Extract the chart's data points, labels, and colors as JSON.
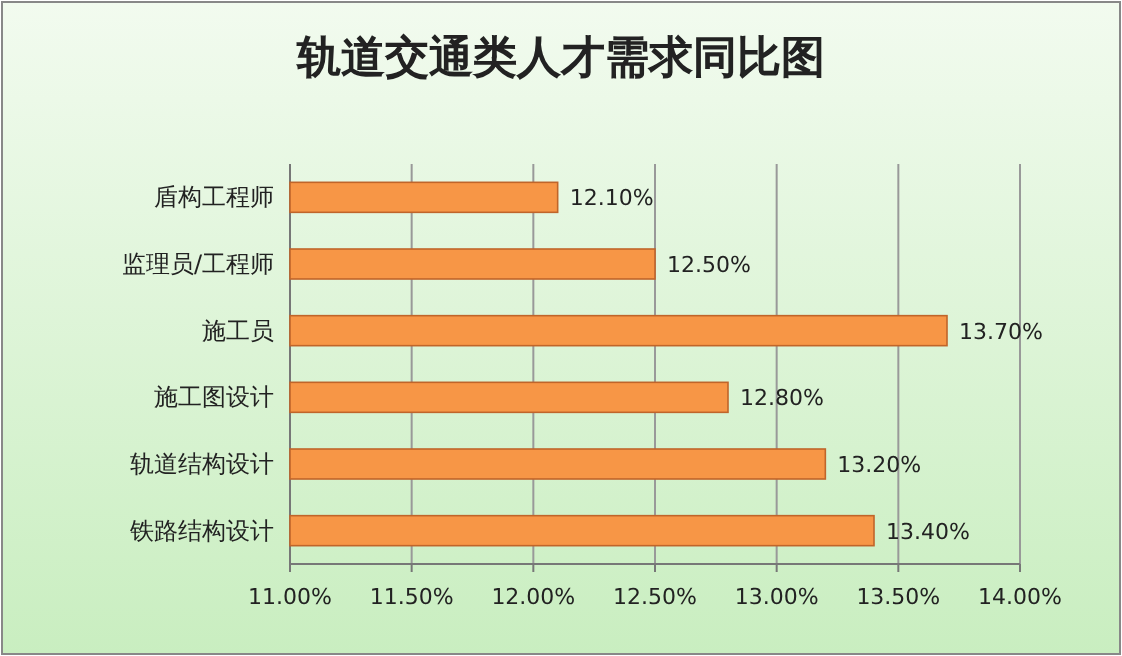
{
  "chart_data": {
    "type": "bar",
    "orientation": "horizontal",
    "title": "轨道交通类人才需求同比图",
    "categories": [
      "盾构工程师",
      "监理员/工程师",
      "施工员",
      "施工图设计",
      "轨道结构设计",
      "铁路结构设计"
    ],
    "values": [
      12.1,
      12.5,
      13.7,
      12.8,
      13.2,
      13.4
    ],
    "value_labels": [
      "12.10%",
      "12.50%",
      "13.70%",
      "12.80%",
      "13.20%",
      "13.40%"
    ],
    "color": "#f79646",
    "xlim": [
      11,
      14
    ],
    "xticks": [
      {
        "value": 11,
        "label": "11.00%"
      },
      {
        "value": 11.5,
        "label": "11.50%"
      },
      {
        "value": 12,
        "label": "12.00%"
      },
      {
        "value": 12.5,
        "label": "12.50%"
      },
      {
        "value": 13,
        "label": "13.00%"
      },
      {
        "value": 13.5,
        "label": "13.50%"
      },
      {
        "value": 14,
        "label": "14.00%"
      }
    ],
    "grid": "x"
  }
}
